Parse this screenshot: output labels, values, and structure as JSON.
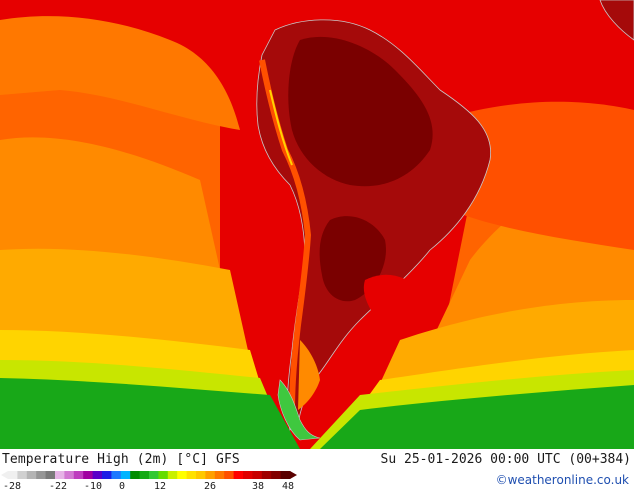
{
  "map": {
    "title": "Temperature High (2m) [°C] GFS",
    "valid_time": "Su 25-01-2026 00:00 UTC (00+384)",
    "credit": "©weatheronline.co.uk",
    "region": "South America",
    "colors": {
      "extreme_hot": "#7a0000",
      "very_hot": "#a50a0a",
      "hot": "#e40000",
      "warm_red": "#f33a00",
      "orange_dark": "#ff6400",
      "orange": "#ff8a00",
      "orange_light": "#ffaa00",
      "yellow": "#ffd400",
      "yellow_green": "#c8e600",
      "green_light": "#3fc83f",
      "green": "#18a818",
      "land_border": "#c8c8c8"
    }
  },
  "legend": {
    "labels": [
      "-28",
      "-22",
      "-10",
      "0",
      "12",
      "26",
      "38",
      "48"
    ],
    "colors": [
      "#f0f0f0",
      "#d0d0d0",
      "#b4b4b4",
      "#969696",
      "#7a7a7a",
      "#e6b4e6",
      "#d278d2",
      "#be3cbe",
      "#a000a0",
      "#5a00c8",
      "#1e1ee6",
      "#1e78ff",
      "#00b4ff",
      "#008c00",
      "#14aa14",
      "#32c832",
      "#64dc00",
      "#c8f000",
      "#ffff00",
      "#ffe100",
      "#ffc800",
      "#ffa000",
      "#ff7800",
      "#ff5000",
      "#ff0000",
      "#e10000",
      "#c80000",
      "#a00000",
      "#820000",
      "#5a0000"
    ]
  }
}
